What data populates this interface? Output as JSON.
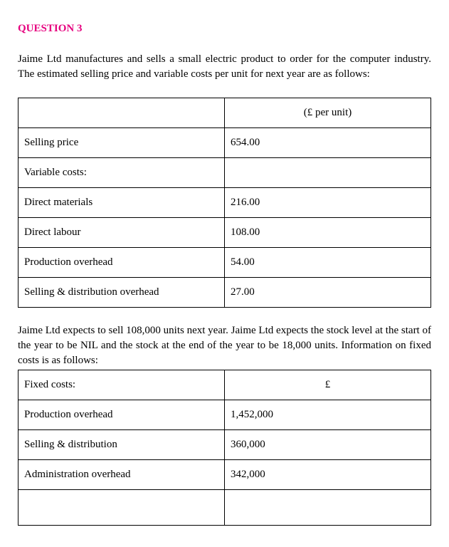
{
  "question_heading": "QUESTION 3",
  "intro_text": "Jaime Ltd manufactures and sells a small electric product to order for the computer industry. The estimated selling price and variable costs per unit for next year are as follows:",
  "table1": {
    "header": "(£ per unit)",
    "rows": [
      {
        "label": "Selling price",
        "value": "654.00"
      },
      {
        "label": "Variable costs:",
        "value": ""
      },
      {
        "label": "Direct materials",
        "value": "216.00"
      },
      {
        "label": "Direct labour",
        "value": "108.00"
      },
      {
        "label": "Production overhead",
        "value": "54.00"
      },
      {
        "label": "Selling & distribution overhead",
        "value": "27.00"
      }
    ]
  },
  "mid_text": "Jaime Ltd expects to sell 108,000 units next year. Jaime Ltd expects the stock level at the start of the year to be NIL and the stock at the end of the year to be 18,000 units. Information on fixed costs is as follows:",
  "table2": {
    "header_label": "Fixed costs:",
    "header_value": "£",
    "rows": [
      {
        "label": "Production overhead",
        "value": "1,452,000"
      },
      {
        "label": "Selling & distribution",
        "value": "360,000"
      },
      {
        "label": "Administration overhead",
        "value": "342,000"
      }
    ]
  },
  "colors": {
    "heading": "#e6007e",
    "text": "#000000",
    "background": "#ffffff",
    "border": "#000000"
  }
}
